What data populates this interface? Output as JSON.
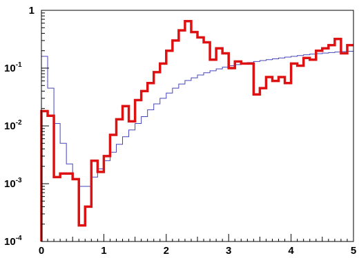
{
  "chart_data": {
    "type": "line",
    "subtype": "step-histogram",
    "title": "",
    "xlabel": "",
    "ylabel": "",
    "xlim": [
      0,
      5
    ],
    "ylim": [
      0.0001,
      1
    ],
    "yscale": "log",
    "grid": false,
    "x_ticks": [
      {
        "value": 0,
        "label": "0"
      },
      {
        "value": 1,
        "label": "1"
      },
      {
        "value": 2,
        "label": "2"
      },
      {
        "value": 3,
        "label": "3"
      },
      {
        "value": 4,
        "label": "4"
      },
      {
        "value": 5,
        "label": "5"
      }
    ],
    "y_ticks": [
      {
        "value": 1,
        "base": "1",
        "exp": ""
      },
      {
        "value": 0.1,
        "base": "10",
        "exp": "-1"
      },
      {
        "value": 0.01,
        "base": "10",
        "exp": "-2"
      },
      {
        "value": 0.001,
        "base": "10",
        "exp": "-3"
      },
      {
        "value": 0.0001,
        "base": "10",
        "exp": "-4"
      }
    ],
    "x_edges": [
      0,
      0.1,
      0.2,
      0.3,
      0.4,
      0.5,
      0.6,
      0.7,
      0.8,
      0.9,
      1.0,
      1.1,
      1.2,
      1.3,
      1.4,
      1.5,
      1.6,
      1.7,
      1.8,
      1.9,
      2.0,
      2.1,
      2.2,
      2.3,
      2.4,
      2.5,
      2.6,
      2.7,
      2.8,
      2.9,
      3.0,
      3.1,
      3.2,
      3.3,
      3.4,
      3.5,
      3.6,
      3.7,
      3.8,
      3.9,
      4.0,
      4.1,
      4.2,
      4.3,
      4.4,
      4.5,
      4.6,
      4.7,
      4.8,
      4.9,
      5.0
    ],
    "series": [
      {
        "color": "#dd1111",
        "stroke_width": 3.5,
        "values": [
          0.018,
          0.015,
          0.0013,
          0.0015,
          0.0015,
          0.0012,
          0.00019,
          0.0004,
          0.0025,
          0.0016,
          0.003,
          0.007,
          0.013,
          0.022,
          0.012,
          0.028,
          0.04,
          0.055,
          0.085,
          0.12,
          0.2,
          0.3,
          0.45,
          0.65,
          0.42,
          0.34,
          0.28,
          0.14,
          0.22,
          0.18,
          0.1,
          0.13,
          0.12,
          0.12,
          0.035,
          0.045,
          0.07,
          0.06,
          0.07,
          0.055,
          0.12,
          0.11,
          0.15,
          0.14,
          0.2,
          0.22,
          0.25,
          0.32,
          0.18,
          0.25
        ]
      },
      {
        "color": "#4444bb",
        "stroke_width": 1,
        "values": [
          0.16,
          0.045,
          0.011,
          0.005,
          0.0022,
          0.0012,
          0.0009,
          0.0009,
          0.0013,
          0.0018,
          0.0025,
          0.0035,
          0.0048,
          0.0065,
          0.0085,
          0.011,
          0.0145,
          0.019,
          0.024,
          0.03,
          0.037,
          0.045,
          0.053,
          0.061,
          0.068,
          0.076,
          0.083,
          0.09,
          0.097,
          0.104,
          0.11,
          0.115,
          0.12,
          0.125,
          0.13,
          0.135,
          0.14,
          0.145,
          0.15,
          0.155,
          0.16,
          0.165,
          0.17,
          0.175,
          0.178,
          0.182,
          0.186,
          0.19,
          0.193,
          0.196
        ]
      }
    ]
  }
}
